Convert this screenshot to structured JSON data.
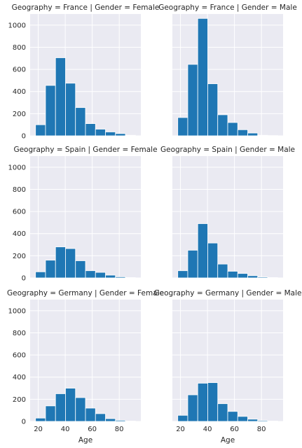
{
  "chart_data": {
    "type": "bar",
    "layout": "facet-grid",
    "row_var": "Geography",
    "col_var": "Gender",
    "xlabel": "Age",
    "ylabel": "",
    "xlim": [
      14,
      96
    ],
    "ylim": [
      0,
      1100
    ],
    "xticks": [
      20,
      40,
      60,
      80
    ],
    "yticks": [
      0,
      200,
      400,
      600,
      800,
      1000
    ],
    "grid": true,
    "color": "#1f77b4",
    "bin_edges": [
      18,
      25.4,
      32.8,
      40.2,
      47.6,
      55.0,
      62.4,
      69.8,
      77.2,
      84.6,
      92
    ],
    "panels": [
      {
        "title": "Geography = France | Gender = Female",
        "values": [
          100,
          455,
          705,
          475,
          255,
          110,
          60,
          35,
          20,
          5
        ]
      },
      {
        "title": "Geography = France | Gender = Male",
        "values": [
          165,
          645,
          1060,
          470,
          190,
          120,
          55,
          25,
          5,
          2
        ]
      },
      {
        "title": "Geography = Spain | Gender = Female",
        "values": [
          55,
          160,
          280,
          265,
          155,
          65,
          50,
          25,
          10,
          3
        ]
      },
      {
        "title": "Geography = Spain | Gender = Male",
        "values": [
          65,
          250,
          490,
          315,
          125,
          60,
          40,
          20,
          8,
          3
        ]
      },
      {
        "title": "Geography = Germany | Gender = Female",
        "values": [
          30,
          140,
          250,
          300,
          215,
          120,
          70,
          25,
          10,
          3
        ]
      },
      {
        "title": "Geography = Germany | Gender = Male",
        "values": [
          55,
          240,
          345,
          350,
          160,
          90,
          45,
          20,
          8,
          3
        ]
      }
    ]
  }
}
